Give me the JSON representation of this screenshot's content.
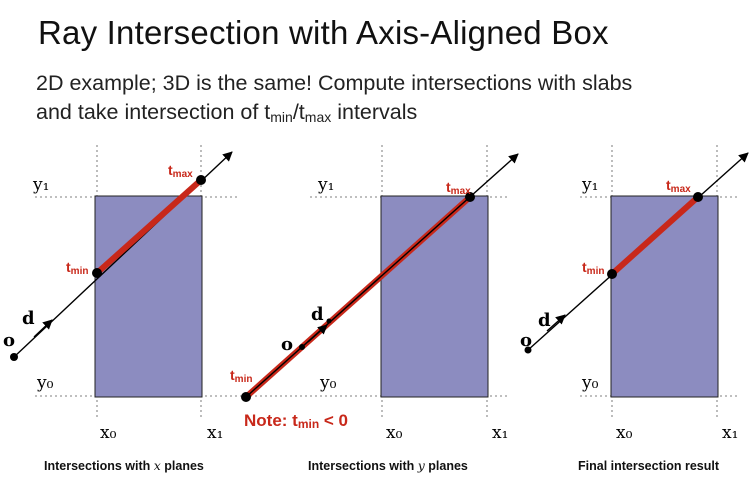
{
  "title": "Ray Intersection with Axis-Aligned Box",
  "subtitle": {
    "line1": "2D example; 3D is the same!  Compute intersections with slabs",
    "line2_a": "and take intersection of t",
    "line2_min": "min",
    "line2_slash": "/t",
    "line2_max": "max",
    "line2_b": " intervals"
  },
  "labels": {
    "y1": "y₁",
    "y0": "y₀",
    "x0": "x₀",
    "x1": "x₁",
    "t": "t",
    "min": "min",
    "max": "max",
    "o": "o",
    "d": "d"
  },
  "note": {
    "prefix": "Note:  t",
    "sub": "min",
    "suffix": " < 0"
  },
  "panels": [
    {
      "caption_a": "Intersections with ",
      "caption_var": "x",
      "caption_b": " planes"
    },
    {
      "caption_a": "Intersections with ",
      "caption_var": "y",
      "caption_b": " planes"
    },
    {
      "caption_a": "Final intersection result",
      "caption_var": "",
      "caption_b": ""
    }
  ],
  "colors": {
    "box": "#8c8cc0",
    "segment": "#c8281a",
    "ray": "#000000",
    "grid": "#999999"
  }
}
